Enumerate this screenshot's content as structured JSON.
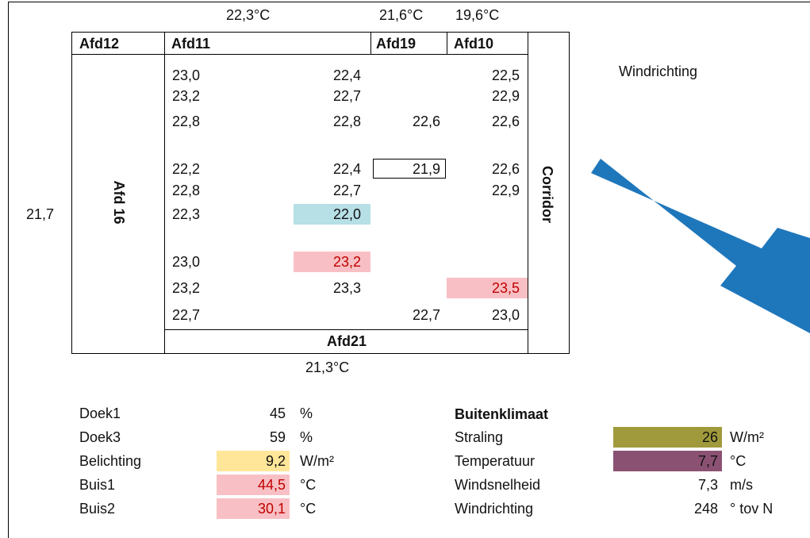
{
  "top_temps": [
    "22,3°C",
    "21,6°C",
    "19,6°C"
  ],
  "left_temp": "21,7",
  "bottom_temp": "21,3°C",
  "headers": {
    "afd12": "Afd12",
    "afd11": "Afd11",
    "afd19": "Afd19",
    "afd10": "Afd10",
    "afd16": "Afd 16",
    "corridor": "Corridor",
    "afd21": "Afd21"
  },
  "grid": [
    [
      "23,0",
      "22,4",
      null,
      "22,5"
    ],
    [
      "23,2",
      "22,7",
      null,
      "22,9"
    ],
    [
      "22,8",
      "22,8",
      "22,6",
      "22,6"
    ],
    [
      "22,2",
      "22,4",
      "21,9",
      "22,6"
    ],
    [
      "22,8",
      "22,7",
      null,
      "22,9"
    ],
    [
      "22,3",
      "22,0",
      null,
      null
    ],
    [
      "23,0",
      "23,2",
      null,
      null
    ],
    [
      "23,2",
      "23,3",
      null,
      "23,5"
    ],
    [
      "22,7",
      null,
      "22,7",
      "23,0"
    ]
  ],
  "wind_label": "Windrichting",
  "settings": [
    {
      "label": "Doek1",
      "value": "45",
      "unit": "%"
    },
    {
      "label": "Doek3",
      "value": "59",
      "unit": "%"
    },
    {
      "label": "Belichting",
      "value": "9,2",
      "unit": "W/m²"
    },
    {
      "label": "Buis1",
      "value": "44,5",
      "unit": "°C"
    },
    {
      "label": "Buis2",
      "value": "30,1",
      "unit": "°C"
    }
  ],
  "climate": {
    "title": "Buitenklimaat",
    "rows": [
      {
        "label": "Straling",
        "value": "26",
        "unit": "W/m²"
      },
      {
        "label": "Temperatuur",
        "value": "7,7",
        "unit": "°C"
      },
      {
        "label": "Windsnelheid",
        "value": "7,3",
        "unit": "m/s"
      },
      {
        "label": "Windrichting",
        "value": "248",
        "unit": "° tov N"
      }
    ]
  }
}
